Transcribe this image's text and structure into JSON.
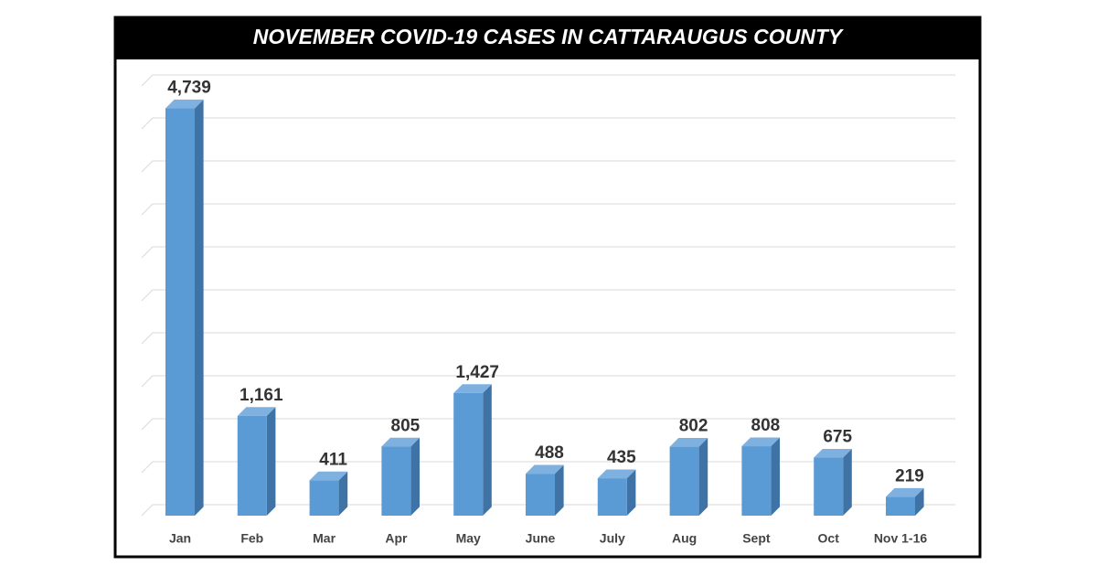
{
  "chart_data": {
    "type": "bar3d",
    "title": "NOVEMBER COVID-19 CASES IN CATTARAUGUS COUNTY",
    "categories": [
      "Jan",
      "Feb",
      "Mar",
      "Apr",
      "May",
      "June",
      "July",
      "Aug",
      "Sept",
      "Oct",
      "Nov 1-16"
    ],
    "values": [
      4739,
      1161,
      411,
      805,
      1427,
      488,
      435,
      802,
      808,
      675,
      219
    ],
    "value_labels": [
      "4,739",
      "1,161",
      "411",
      "805",
      "1,427",
      "488",
      "435",
      "802",
      "808",
      "675",
      "219"
    ],
    "color": "#5b9bd5",
    "ylim": [
      0,
      5000
    ],
    "yticks": [
      0,
      500,
      1000,
      1500,
      2000,
      2500,
      3000,
      3500,
      4000,
      4500,
      5000
    ],
    "grid": true
  }
}
